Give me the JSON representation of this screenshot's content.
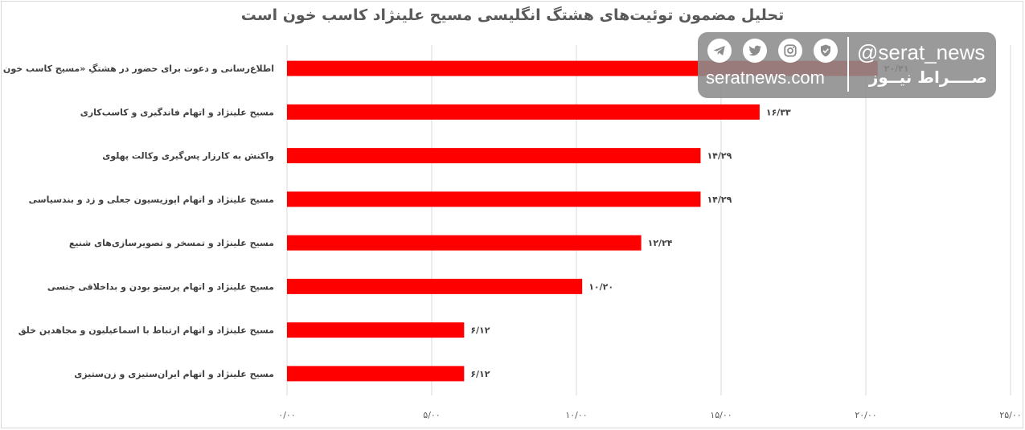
{
  "chart_data": {
    "type": "bar",
    "orientation": "horizontal",
    "title": "تحلیل مضمون توئیت‌های هشتگ انگلیسی مسیح علینژاد کاسب خون است",
    "categories": [
      "اطلاع‌رسانی و دعوت برای حضور در هشتگِ «مسیح کاسب خون است»",
      "مسیح علینژاد و اتهام فاندگیری و کاسب‌کاری",
      "واکنش به کارزار پس‌گیری وکالت پهلوی",
      "مسیح علینژاد و اتهام اپوزیسیون جعلی و زد و بندسیاسی",
      "مسیح علینژاد و تمسخر و تصویرسازی‌های شنیع",
      "مسیح علینژاد و اتهام پرستو بودن و بداخلاقی جنسی",
      "مسیح علینژاد و اتهام ارتباط با اسماعیلیون و مجاهدین خلق",
      "مسیح علینژاد و اتهام ایران‌ستیزی و زن‌ستیزی"
    ],
    "values": [
      20.41,
      16.33,
      14.29,
      14.29,
      12.24,
      10.2,
      6.12,
      6.12
    ],
    "value_labels": [
      "۲۰/۴۱",
      "۱۶/۳۳",
      "۱۴/۲۹",
      "۱۴/۲۹",
      "۱۲/۲۴",
      "۱۰/۲۰",
      "۶/۱۲",
      "۶/۱۲"
    ],
    "xlim": [
      0,
      25
    ],
    "ticks": [
      0,
      5,
      10,
      15,
      20,
      25
    ],
    "tick_labels": [
      "۰/۰۰",
      "۵/۰۰",
      "۱۰/۰۰",
      "۱۵/۰۰",
      "۲۰/۰۰",
      "۲۵/۰۰"
    ],
    "grid": true,
    "bar_color": "#ff0000"
  },
  "watermark": {
    "handle": "@serat_news",
    "site": "seratnews.com",
    "brand": "صــــراط نیــوز",
    "icons": [
      "telegram-icon",
      "twitter-icon",
      "instagram-icon",
      "shield-check-icon"
    ]
  }
}
